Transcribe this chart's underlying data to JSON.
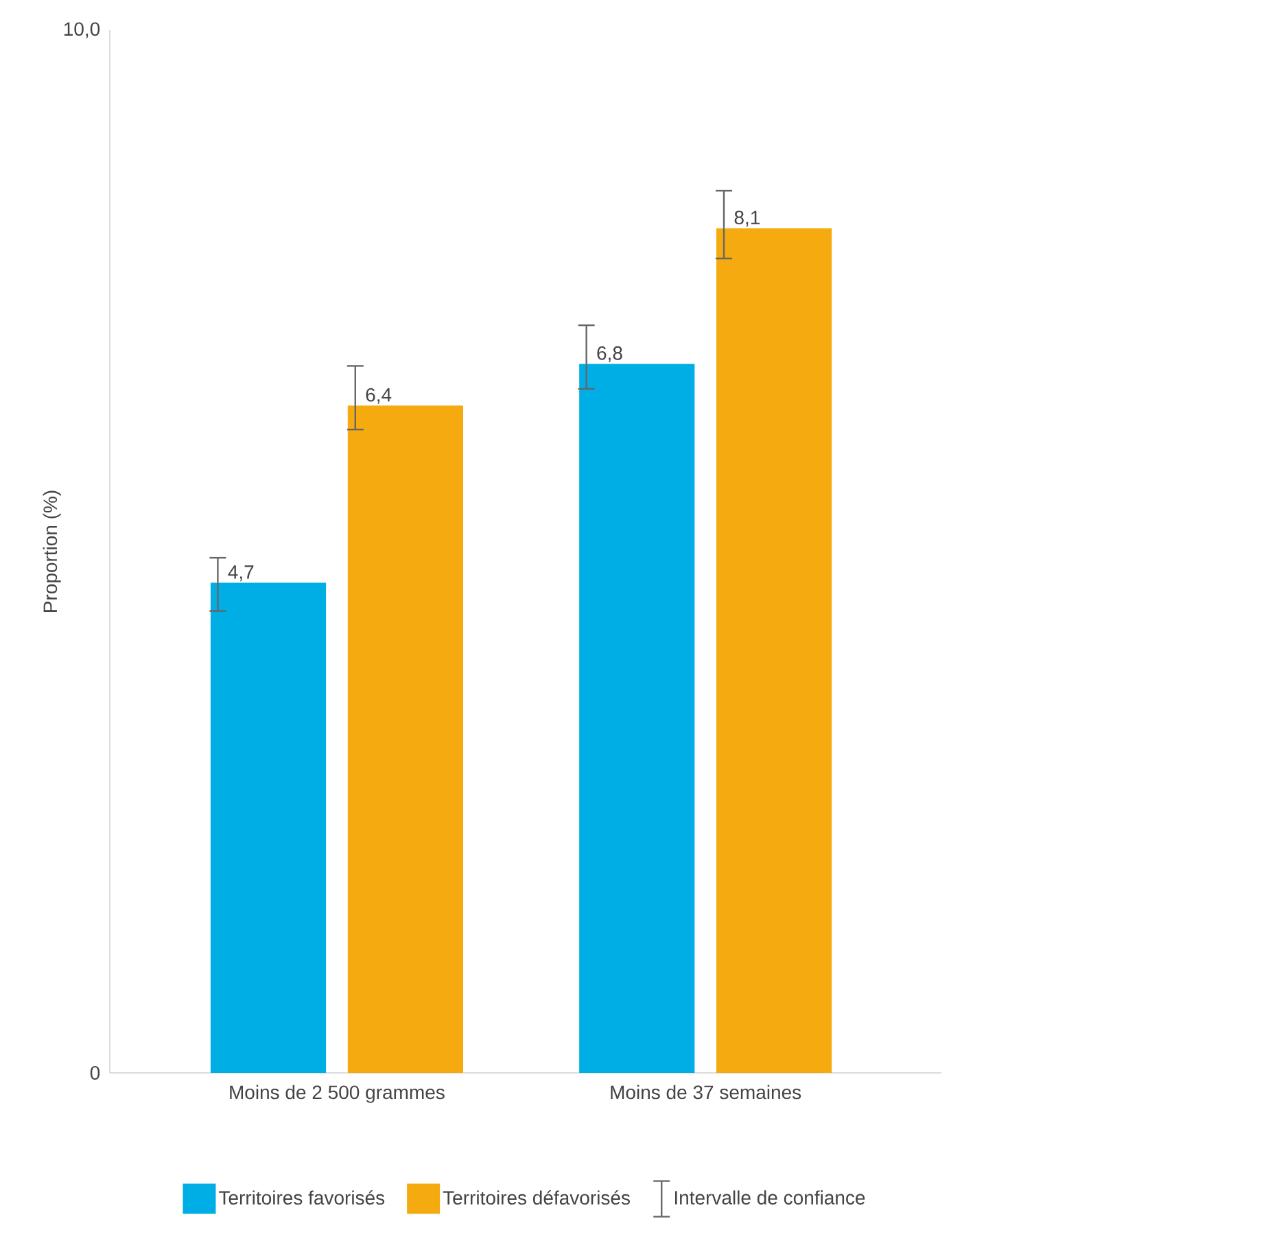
{
  "chart_data": {
    "type": "bar",
    "ylabel": "Proportion (%)",
    "categories": [
      "Moins de 2 500 grammes",
      "Moins de 37 semaines"
    ],
    "series": [
      {
        "name": "Territoires favorisés",
        "color": "#00aee6",
        "values": [
          4.7,
          6.8
        ],
        "errors": [
          [
            4.43,
            4.94
          ],
          [
            6.56,
            7.17
          ]
        ],
        "value_labels": [
          "4,7",
          "6,8"
        ]
      },
      {
        "name": "Territoires défavorisés",
        "color": "#f5aa0f",
        "values": [
          6.4,
          8.1
        ],
        "errors": [
          [
            6.17,
            6.78
          ],
          [
            7.81,
            8.46
          ]
        ],
        "value_labels": [
          "6,4",
          "8,1"
        ]
      }
    ],
    "ylim": [
      0,
      10
    ],
    "yticks": [
      0,
      {
        "value": 10,
        "label": "10,0"
      }
    ],
    "grid": false,
    "legend": "bottom",
    "annotations": [
      "Intervalle de confiance"
    ]
  }
}
